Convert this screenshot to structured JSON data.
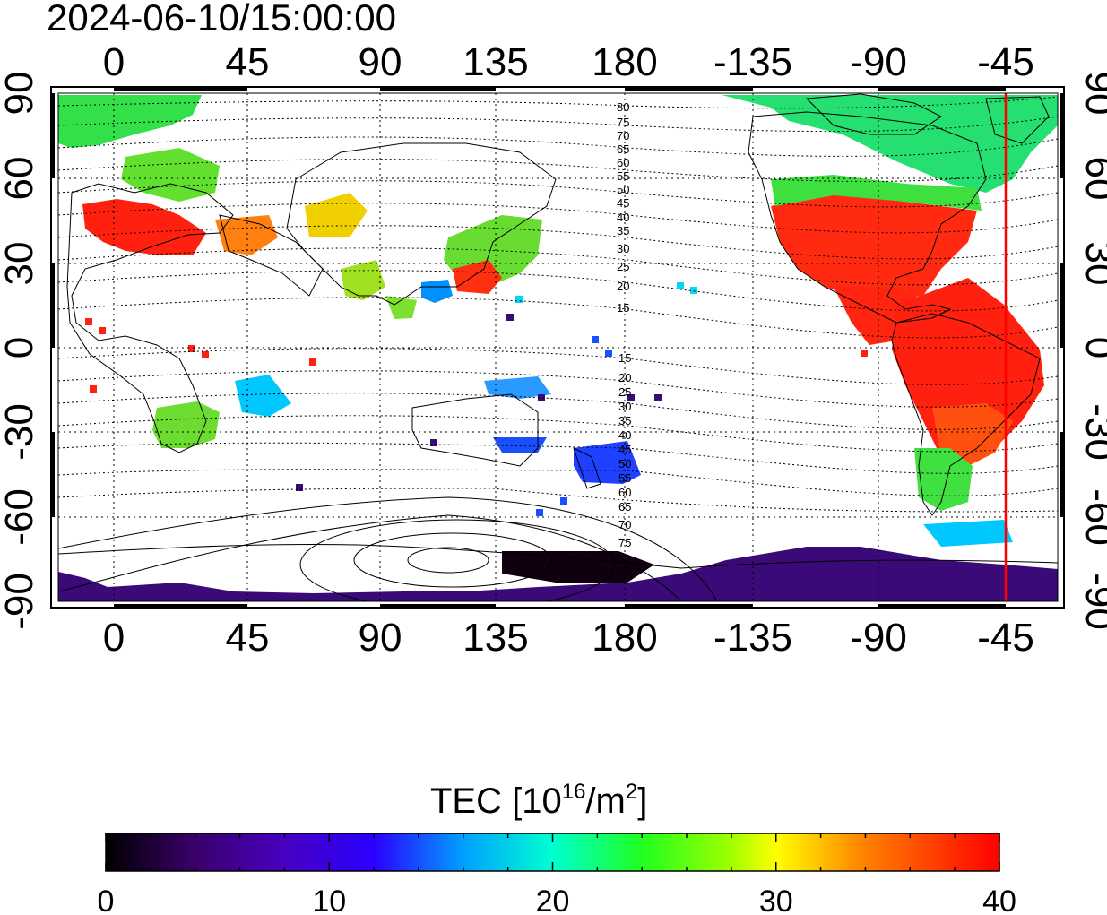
{
  "title": "2024-06-10/15:00:00",
  "map": {
    "x_tick_labels": [
      "0",
      "45",
      "90",
      "135",
      "180",
      "-135",
      "-90",
      "-45"
    ],
    "y_tick_labels": [
      "90",
      "60",
      "30",
      "0",
      "-30",
      "-60",
      "-90"
    ],
    "dip_contour_labels_north": [
      "80",
      "75",
      "70",
      "65",
      "60",
      "55",
      "50",
      "45",
      "40",
      "35",
      "30",
      "25",
      "20",
      "15"
    ],
    "dip_contour_labels_south": [
      "15",
      "20",
      "25",
      "30",
      "35",
      "40",
      "45",
      "50",
      "55",
      "60",
      "65",
      "70",
      "75"
    ],
    "terminator_color": "#ff0000",
    "grid": "dotted"
  },
  "colorbar": {
    "title_prefix": "TEC  [10",
    "title_exp": "16",
    "title_mid": "/m",
    "title_exp2": "2",
    "title_suffix": "]",
    "tick_labels": [
      "0",
      "10",
      "20",
      "30",
      "40"
    ],
    "range": [
      0,
      40
    ],
    "colors": [
      "#000000",
      "#3a006a",
      "#2a00ff",
      "#0080ff",
      "#00ffff",
      "#00ff40",
      "#80ff00",
      "#ffff00",
      "#ff8000",
      "#ff0000"
    ]
  }
}
